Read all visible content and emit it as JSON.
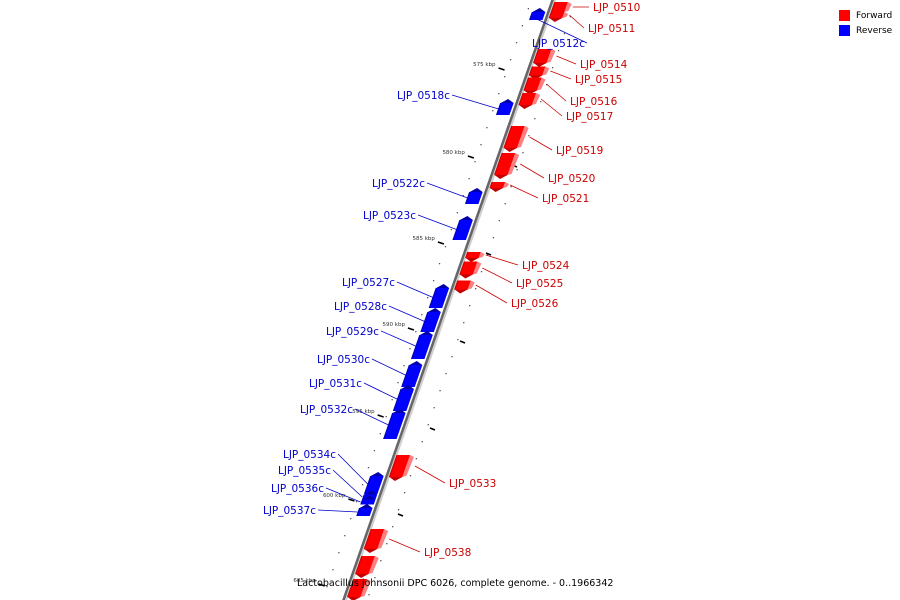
{
  "legend": {
    "forward_label": "Forward",
    "reverse_label": "Reverse",
    "forward_color": "#ff0000",
    "reverse_color": "#0000ff"
  },
  "caption": "Lactobacillus johnsonii DPC 6026, complete genome. - 0..1966342",
  "colors": {
    "forward": "#ff0000",
    "forward_dark": "#c40000",
    "forward_light": "#ff8080",
    "reverse": "#0000ff",
    "reverse_dark": "#0000a8",
    "reverse_light": "#8080ff",
    "backbone": "#666666",
    "label_forward": "#cc0000",
    "label_reverse": "#0000cc"
  },
  "scale_labels": [
    "575 kbp",
    "580 kbp",
    "585 kbp",
    "590 kbp",
    "595 kbp",
    "600 kbp",
    "605 kbp"
  ],
  "genes": [
    {
      "name": "LJP_0510",
      "strand": "forward"
    },
    {
      "name": "LJP_0511",
      "strand": "forward"
    },
    {
      "name": "LJP_0512c",
      "strand": "reverse"
    },
    {
      "name": "LJP_0514",
      "strand": "forward"
    },
    {
      "name": "LJP_0515",
      "strand": "forward"
    },
    {
      "name": "LJP_0516",
      "strand": "forward"
    },
    {
      "name": "LJP_0517",
      "strand": "forward"
    },
    {
      "name": "LJP_0518c",
      "strand": "reverse"
    },
    {
      "name": "LJP_0519",
      "strand": "forward"
    },
    {
      "name": "LJP_0520",
      "strand": "forward"
    },
    {
      "name": "LJP_0521",
      "strand": "forward"
    },
    {
      "name": "LJP_0522c",
      "strand": "reverse"
    },
    {
      "name": "LJP_0523c",
      "strand": "reverse"
    },
    {
      "name": "LJP_0524",
      "strand": "forward"
    },
    {
      "name": "LJP_0525",
      "strand": "forward"
    },
    {
      "name": "LJP_0526",
      "strand": "forward"
    },
    {
      "name": "LJP_0527c",
      "strand": "reverse"
    },
    {
      "name": "LJP_0528c",
      "strand": "reverse"
    },
    {
      "name": "LJP_0529c",
      "strand": "reverse"
    },
    {
      "name": "LJP_0530c",
      "strand": "reverse"
    },
    {
      "name": "LJP_0531c",
      "strand": "reverse"
    },
    {
      "name": "LJP_0532c",
      "strand": "reverse"
    },
    {
      "name": "LJP_0533",
      "strand": "forward"
    },
    {
      "name": "LJP_0534c",
      "strand": "reverse"
    },
    {
      "name": "LJP_0535c",
      "strand": "reverse"
    },
    {
      "name": "LJP_0536c",
      "strand": "reverse"
    },
    {
      "name": "LJP_0537c",
      "strand": "reverse"
    },
    {
      "name": "LJP_0538",
      "strand": "forward"
    },
    {
      "name": "",
      "strand": "forward"
    },
    {
      "name": "",
      "strand": "forward"
    }
  ]
}
